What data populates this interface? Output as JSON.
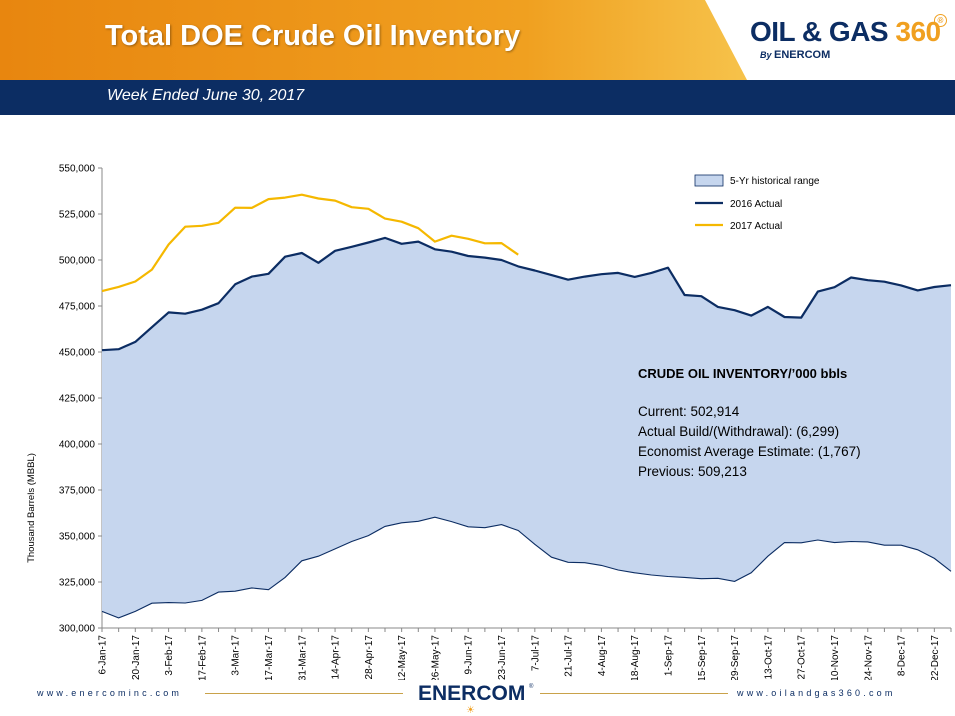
{
  "header": {
    "title": "Total DOE Crude Oil Inventory",
    "subtitle": "Week Ended June 30, 2017",
    "logo": {
      "main_text": "OIL & GAS ",
      "number": "360",
      "registered": "®",
      "by": "By ",
      "company": "ENERCOM"
    }
  },
  "footer": {
    "left_url": "www.enercominc.com",
    "right_url": "www.oilandgas360.com",
    "logo_text": "ENERCOM",
    "logo_registered": "®"
  },
  "info_box": {
    "heading": "CRUDE OIL INVENTORY/’000 bbls",
    "current": "Current: 502,914",
    "build": "Actual Build/(Withdrawal):  (6,299)",
    "estimate": "Economist Average Estimate: (1,767)",
    "previous": "Previous: 509,213"
  },
  "colors": {
    "range_fill": "#c6d6ee",
    "range_edge": "#0c2d63",
    "line_2016": "#0c2d63",
    "line_2017": "#f5b800",
    "brand_navy": "#0c2d63",
    "brand_orange": "#f0a020"
  },
  "chart_data": {
    "type": "area",
    "title": "Total DOE Crude Oil Inventory",
    "ylabel": "Thousand Barrels (MBBL)",
    "xlabel": "",
    "ylim": [
      300000,
      550000
    ],
    "yticks": [
      300000,
      325000,
      350000,
      375000,
      400000,
      425000,
      450000,
      475000,
      500000,
      525000,
      550000
    ],
    "ytick_labels": [
      "300,000",
      "325,000",
      "350,000",
      "375,000",
      "400,000",
      "425,000",
      "450,000",
      "475,000",
      "500,000",
      "525,000",
      "550,000"
    ],
    "tick_labels": [
      "6-Jan-17",
      "20-Jan-17",
      "3-Feb-17",
      "17-Feb-17",
      "3-Mar-17",
      "17-Mar-17",
      "31-Mar-17",
      "14-Apr-17",
      "28-Apr-17",
      "12-May-17",
      "26-May-17",
      "9-Jun-17",
      "23-Jun-17",
      "7-Jul-17",
      "21-Jul-17",
      "4-Aug-17",
      "18-Aug-17",
      "1-Sep-17",
      "15-Sep-17",
      "29-Sep-17",
      "13-Oct-17",
      "27-Oct-17",
      "10-Nov-17",
      "24-Nov-17",
      "8-Dec-17",
      "22-Dec-17"
    ],
    "legend": [
      "5-Yr historical range",
      "2016 Actual",
      "2017 Actual"
    ],
    "legend_position": "top-right",
    "weeks": 52,
    "series": [
      {
        "name": "5-Yr historical range (min)",
        "kind": "range_low",
        "values": [
          309000,
          305500,
          309000,
          313500,
          313800,
          313600,
          315000,
          319500,
          320000,
          321800,
          320800,
          327500,
          336500,
          339000,
          343000,
          347000,
          350200,
          355200,
          357200,
          358000,
          360200,
          357800,
          355000,
          354500,
          356200,
          353000,
          345500,
          338500,
          335700,
          335500,
          334000,
          331500,
          330000,
          328800,
          328000,
          327500,
          326800,
          327000,
          325300,
          330000,
          339000,
          346400,
          346300,
          347800,
          346400,
          347000,
          346800,
          345000,
          345000,
          342500,
          337800,
          330800
        ]
      },
      {
        "name": "5-Yr historical range (max)",
        "kind": "range_high",
        "values": [
          451000,
          451500,
          455500,
          463500,
          471500,
          470800,
          473000,
          476500,
          486800,
          491000,
          492500,
          501800,
          503800,
          498500,
          505000,
          507200,
          509500,
          512000,
          508800,
          510000,
          505800,
          504500,
          502200,
          501300,
          500000,
          496500,
          494300,
          491800,
          489300,
          491000,
          492300,
          493000,
          490800,
          493000,
          495800,
          481000,
          480300,
          474500,
          472700,
          469800,
          474500,
          469000,
          468700,
          482800,
          485200,
          490500,
          489000,
          488200,
          486200,
          483500,
          485300,
          486300
        ]
      },
      {
        "name": "2016 Actual",
        "kind": "line",
        "values": [
          451000,
          451500,
          455500,
          463500,
          471500,
          470800,
          473000,
          476500,
          486800,
          491000,
          492500,
          501800,
          503800,
          498500,
          505000,
          507200,
          509500,
          512000,
          508800,
          510000,
          505800,
          504500,
          502200,
          501300,
          500000,
          496500,
          494300,
          491800,
          489300,
          491000,
          492300,
          493000,
          490800,
          493000,
          495800,
          481000,
          480300,
          474500,
          472700,
          469800,
          474500,
          469000,
          468700,
          482800,
          485200,
          490500,
          489000,
          488200,
          486200,
          483500,
          485300,
          486300
        ]
      },
      {
        "name": "2017 Actual",
        "kind": "line",
        "values": [
          483100,
          485400,
          488300,
          494800,
          508400,
          518100,
          518600,
          520200,
          528400,
          528300,
          533100,
          533900,
          535500,
          533400,
          532300,
          528700,
          527800,
          522500,
          520800,
          517300,
          510000,
          513200,
          511500,
          509100,
          509200,
          502900
        ]
      }
    ],
    "grid": false
  }
}
